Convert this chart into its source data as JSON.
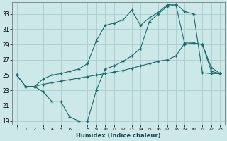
{
  "xlabel": "Humidex (Indice chaleur)",
  "background_color": "#cce8e8",
  "grid_color": "#aacccc",
  "line_color": "#1a6b6b",
  "xlim": [
    -0.5,
    23.5
  ],
  "ylim": [
    18.5,
    34.5
  ],
  "yticks": [
    19,
    21,
    23,
    25,
    27,
    29,
    31,
    33
  ],
  "xticks": [
    0,
    1,
    2,
    3,
    4,
    5,
    6,
    7,
    8,
    9,
    10,
    11,
    12,
    13,
    14,
    15,
    16,
    17,
    18,
    19,
    20,
    21,
    22,
    23
  ],
  "line_top_x": [
    0,
    1,
    2,
    3,
    4,
    5,
    6,
    7,
    8,
    9,
    10,
    11,
    12,
    13,
    14,
    15,
    16,
    17,
    18,
    19,
    20,
    21,
    22,
    23
  ],
  "line_top_y": [
    25.0,
    23.5,
    23.5,
    24.5,
    25.0,
    25.2,
    25.5,
    25.8,
    26.5,
    29.5,
    31.5,
    31.8,
    32.2,
    33.5,
    31.5,
    32.5,
    33.2,
    34.2,
    34.3,
    33.3,
    33.0,
    25.3,
    25.2,
    25.2
  ],
  "line_mid_x": [
    0,
    1,
    2,
    3,
    4,
    5,
    6,
    7,
    8,
    9,
    10,
    11,
    12,
    13,
    14,
    15,
    16,
    17,
    18,
    19,
    20,
    21,
    22,
    23
  ],
  "line_mid_y": [
    25.0,
    23.5,
    23.5,
    23.8,
    24.0,
    24.2,
    24.4,
    24.6,
    24.8,
    25.0,
    25.2,
    25.4,
    25.6,
    25.9,
    26.2,
    26.5,
    26.8,
    27.0,
    27.5,
    29.2,
    29.2,
    29.0,
    26.0,
    25.2
  ],
  "line_bot_x": [
    0,
    1,
    2,
    3,
    4,
    5,
    6,
    7,
    8,
    9,
    10,
    11,
    12,
    13,
    14,
    15,
    16,
    17,
    18,
    19,
    20,
    21,
    22,
    23
  ],
  "line_bot_y": [
    25.0,
    23.5,
    23.5,
    22.8,
    21.5,
    21.5,
    19.5,
    19.0,
    19.0,
    23.0,
    25.8,
    26.2,
    26.8,
    27.5,
    28.5,
    32.0,
    33.0,
    34.0,
    34.2,
    29.0,
    29.2,
    29.0,
    25.5,
    25.2
  ]
}
